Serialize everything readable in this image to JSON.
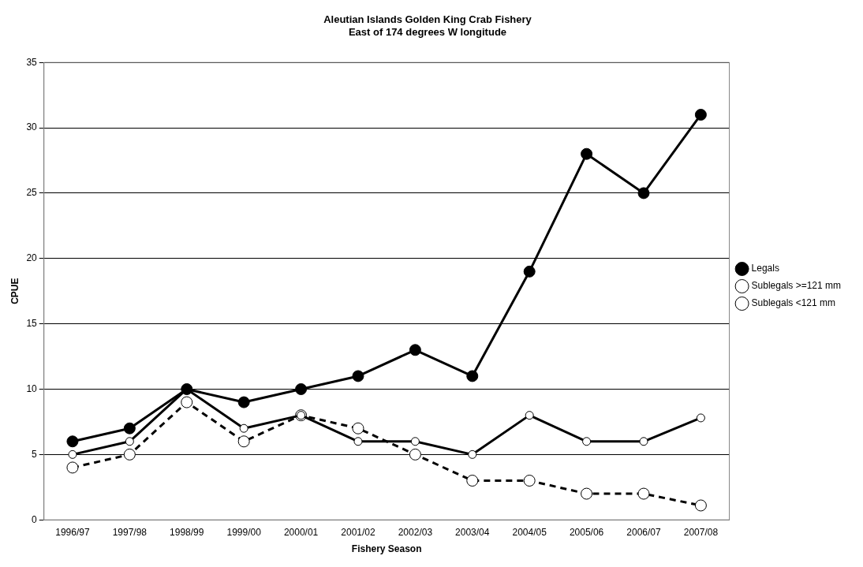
{
  "chart_data": {
    "type": "line",
    "title": [
      "Aleutian Islands Golden King Crab Fishery",
      "East of 174 degrees W longitude"
    ],
    "xlabel": "Fishery Season",
    "ylabel": "CPUE",
    "categories": [
      "1996/97",
      "1997/98",
      "1998/99",
      "1999/00",
      "2000/01",
      "2001/02",
      "2002/03",
      "2003/04",
      "2004/05",
      "2005/06",
      "2006/07",
      "2007/08"
    ],
    "series": [
      {
        "name": "Legals",
        "color": "#000000",
        "line_style": "solid",
        "values": [
          6,
          7,
          10,
          9,
          10,
          11,
          13,
          11,
          19,
          28,
          25,
          31
        ]
      },
      {
        "name": "Sublegals >=121 mm",
        "color": "#000000",
        "line_style": "solid",
        "values": [
          5,
          6,
          10,
          7,
          8,
          6,
          6,
          5,
          8,
          6,
          6,
          7.8
        ]
      },
      {
        "name": "Sublegals <121 mm",
        "color": "#000000",
        "line_style": "dashed",
        "values": [
          4,
          5,
          9,
          6,
          8,
          7,
          5,
          3,
          3,
          2,
          2,
          1.1
        ]
      }
    ],
    "ylim": [
      0,
      35
    ],
    "yticks": [
      0,
      5,
      10,
      15,
      20,
      25,
      30,
      35
    ],
    "grid": "y",
    "legend": "right",
    "marker": "circle"
  }
}
